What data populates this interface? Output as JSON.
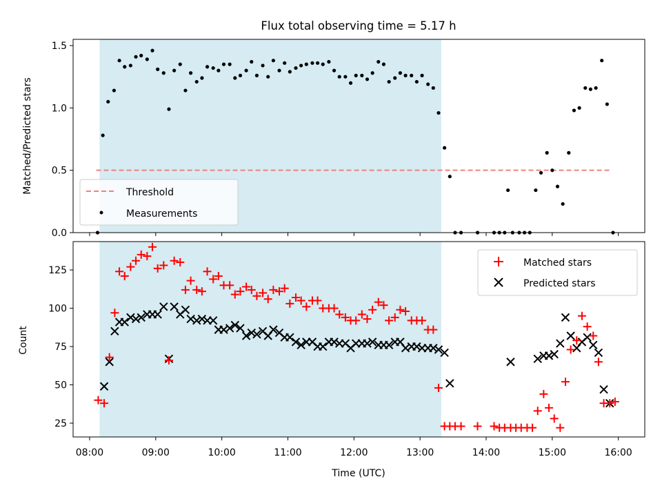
{
  "chart_data": [
    {
      "type": "scatter",
      "title": "Flux total observing time = 5.17 h",
      "ylabel": "Matched/Predicted stars",
      "xlabel": "",
      "xlim": [
        7.75,
        16.4
      ],
      "ylim": [
        0,
        1.55
      ],
      "yticks": [
        0.0,
        0.5,
        1.0,
        1.5
      ],
      "ytick_labels": [
        "0.0",
        "0.5",
        "1.0",
        "1.5"
      ],
      "observing_window": [
        8.15,
        13.32
      ],
      "threshold": {
        "label": "Threshold",
        "value": 0.5,
        "x_range": [
          8.1,
          15.9
        ],
        "color": "#f08080"
      },
      "series": [
        {
          "name": "Measurements",
          "color": "#000000",
          "x": [
            8.12,
            8.2,
            8.28,
            8.37,
            8.45,
            8.53,
            8.62,
            8.7,
            8.78,
            8.87,
            8.95,
            9.03,
            9.12,
            9.2,
            9.28,
            9.37,
            9.45,
            9.53,
            9.62,
            9.7,
            9.78,
            9.87,
            9.95,
            10.03,
            10.12,
            10.2,
            10.28,
            10.37,
            10.45,
            10.53,
            10.62,
            10.7,
            10.78,
            10.87,
            10.95,
            11.03,
            11.12,
            11.2,
            11.28,
            11.37,
            11.45,
            11.53,
            11.62,
            11.7,
            11.78,
            11.87,
            11.95,
            12.03,
            12.12,
            12.2,
            12.28,
            12.37,
            12.45,
            12.53,
            12.62,
            12.7,
            12.78,
            12.87,
            12.95,
            13.03,
            13.12,
            13.2,
            13.28,
            13.37,
            13.45,
            13.53,
            13.62,
            13.87,
            14.12,
            14.2,
            14.28,
            14.33,
            14.4,
            14.5,
            14.58,
            14.66,
            14.75,
            14.83,
            14.92,
            15.0,
            15.08,
            15.16,
            15.25,
            15.33,
            15.41,
            15.5,
            15.58,
            15.66,
            15.75,
            15.83,
            15.92
          ],
          "y": [
            0.0,
            0.78,
            1.05,
            1.14,
            1.38,
            1.33,
            1.34,
            1.41,
            1.42,
            1.39,
            1.46,
            1.31,
            1.28,
            0.99,
            1.3,
            1.35,
            1.14,
            1.28,
            1.21,
            1.24,
            1.33,
            1.32,
            1.3,
            1.35,
            1.35,
            1.24,
            1.26,
            1.3,
            1.37,
            1.26,
            1.34,
            1.25,
            1.38,
            1.3,
            1.36,
            1.29,
            1.32,
            1.34,
            1.35,
            1.36,
            1.36,
            1.35,
            1.37,
            1.3,
            1.25,
            1.25,
            1.2,
            1.26,
            1.26,
            1.23,
            1.28,
            1.37,
            1.35,
            1.21,
            1.24,
            1.28,
            1.26,
            1.26,
            1.21,
            1.26,
            1.19,
            1.16,
            0.96,
            0.68,
            0.45,
            0.0,
            0.0,
            0.0,
            0.0,
            0.0,
            0.0,
            0.34,
            0.0,
            0.0,
            0.0,
            0.0,
            0.34,
            0.48,
            0.64,
            0.5,
            0.37,
            0.23,
            0.64,
            0.98,
            1.0,
            1.16,
            1.15,
            1.16,
            1.38,
            1.03,
            0.0
          ]
        }
      ],
      "legend": {
        "position": "lower-left",
        "entries": [
          "Threshold",
          "Measurements"
        ]
      }
    },
    {
      "type": "scatter",
      "title": "",
      "ylabel": "Count",
      "xlabel": "Time (UTC)",
      "xlim": [
        7.75,
        16.4
      ],
      "ylim": [
        16,
        143.5
      ],
      "yticks": [
        25,
        50,
        75,
        100,
        125
      ],
      "ytick_labels": [
        "25",
        "50",
        "75",
        "100",
        "125"
      ],
      "xticks": [
        8,
        9,
        10,
        11,
        12,
        13,
        14,
        15,
        16
      ],
      "xtick_labels": [
        "08:00",
        "09:00",
        "10:00",
        "11:00",
        "12:00",
        "13:00",
        "14:00",
        "15:00",
        "16:00"
      ],
      "observing_window": [
        8.15,
        13.32
      ],
      "series": [
        {
          "name": "Matched stars",
          "marker": "+",
          "color": "#ff0000",
          "x": [
            8.13,
            8.22,
            8.3,
            8.38,
            8.45,
            8.53,
            8.62,
            8.7,
            8.78,
            8.87,
            8.95,
            9.03,
            9.12,
            9.2,
            9.28,
            9.37,
            9.45,
            9.53,
            9.62,
            9.7,
            9.78,
            9.87,
            9.95,
            10.03,
            10.12,
            10.2,
            10.28,
            10.37,
            10.45,
            10.53,
            10.62,
            10.7,
            10.78,
            10.87,
            10.95,
            11.03,
            11.12,
            11.2,
            11.28,
            11.37,
            11.45,
            11.53,
            11.62,
            11.7,
            11.78,
            11.87,
            11.95,
            12.03,
            12.12,
            12.2,
            12.28,
            12.37,
            12.45,
            12.53,
            12.62,
            12.7,
            12.78,
            12.87,
            12.95,
            13.03,
            13.12,
            13.2,
            13.28,
            13.37,
            13.45,
            13.53,
            13.62,
            13.87,
            14.12,
            14.2,
            14.28,
            14.37,
            14.45,
            14.53,
            14.62,
            14.7,
            14.78,
            14.87,
            14.95,
            15.03,
            15.12,
            15.2,
            15.28,
            15.37,
            15.45,
            15.53,
            15.62,
            15.7,
            15.78,
            15.87,
            15.95
          ],
          "y": [
            40,
            38,
            68,
            97,
            124,
            121,
            127,
            131,
            135,
            134,
            140,
            126,
            128,
            66,
            131,
            130,
            112,
            118,
            112,
            111,
            124,
            119,
            121,
            115,
            115,
            109,
            111,
            114,
            112,
            108,
            110,
            106,
            112,
            111,
            113,
            103,
            107,
            105,
            101,
            105,
            105,
            100,
            100,
            100,
            96,
            94,
            92,
            92,
            96,
            93,
            99,
            104,
            102,
            92,
            94,
            99,
            98,
            92,
            92,
            92,
            86,
            86,
            48,
            23,
            23,
            23,
            23,
            23,
            23,
            22,
            22,
            22,
            22,
            22,
            22,
            22,
            33,
            44,
            35,
            28,
            22,
            52,
            73,
            79,
            95,
            88,
            82,
            65,
            38,
            38,
            39
          ]
        },
        {
          "name": "Predicted stars",
          "marker": "x",
          "color": "#000000",
          "x": [
            8.22,
            8.3,
            8.38,
            8.45,
            8.53,
            8.62,
            8.7,
            8.78,
            8.87,
            8.95,
            9.03,
            9.12,
            9.2,
            9.28,
            9.37,
            9.45,
            9.53,
            9.62,
            9.7,
            9.78,
            9.87,
            9.95,
            10.03,
            10.12,
            10.2,
            10.28,
            10.37,
            10.45,
            10.53,
            10.62,
            10.7,
            10.78,
            10.87,
            10.95,
            11.03,
            11.12,
            11.2,
            11.28,
            11.37,
            11.45,
            11.53,
            11.62,
            11.7,
            11.78,
            11.87,
            11.95,
            12.03,
            12.12,
            12.2,
            12.28,
            12.37,
            12.45,
            12.53,
            12.62,
            12.7,
            12.78,
            12.87,
            12.95,
            13.03,
            13.12,
            13.2,
            13.28,
            13.37,
            13.45,
            14.37,
            14.78,
            14.87,
            14.95,
            15.03,
            15.12,
            15.2,
            15.28,
            15.37,
            15.45,
            15.53,
            15.62,
            15.7,
            15.78,
            15.87
          ],
          "y": [
            49,
            65,
            85,
            91,
            91,
            94,
            93,
            94,
            96,
            96,
            96,
            101,
            67,
            101,
            96,
            99,
            93,
            92,
            93,
            92,
            92,
            86,
            86,
            87,
            89,
            87,
            82,
            84,
            83,
            85,
            82,
            86,
            84,
            81,
            81,
            78,
            76,
            78,
            78,
            75,
            75,
            78,
            78,
            77,
            77,
            74,
            77,
            77,
            77,
            78,
            76,
            76,
            76,
            78,
            78,
            74,
            75,
            75,
            74,
            74,
            74,
            73,
            71,
            51,
            65,
            67,
            69,
            69,
            70,
            77,
            94,
            82,
            74,
            78,
            81,
            76,
            71,
            47,
            38
          ]
        }
      ],
      "legend": {
        "position": "top-right",
        "entries": [
          "Matched stars",
          "Predicted stars"
        ]
      }
    }
  ]
}
